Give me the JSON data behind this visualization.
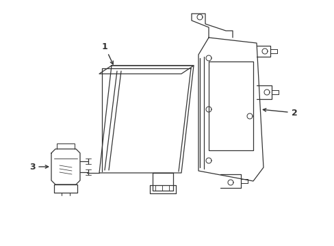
{
  "background_color": "#ffffff",
  "line_color": "#333333",
  "line_width": 0.9,
  "figsize": [
    4.89,
    3.6
  ],
  "dpi": 100
}
